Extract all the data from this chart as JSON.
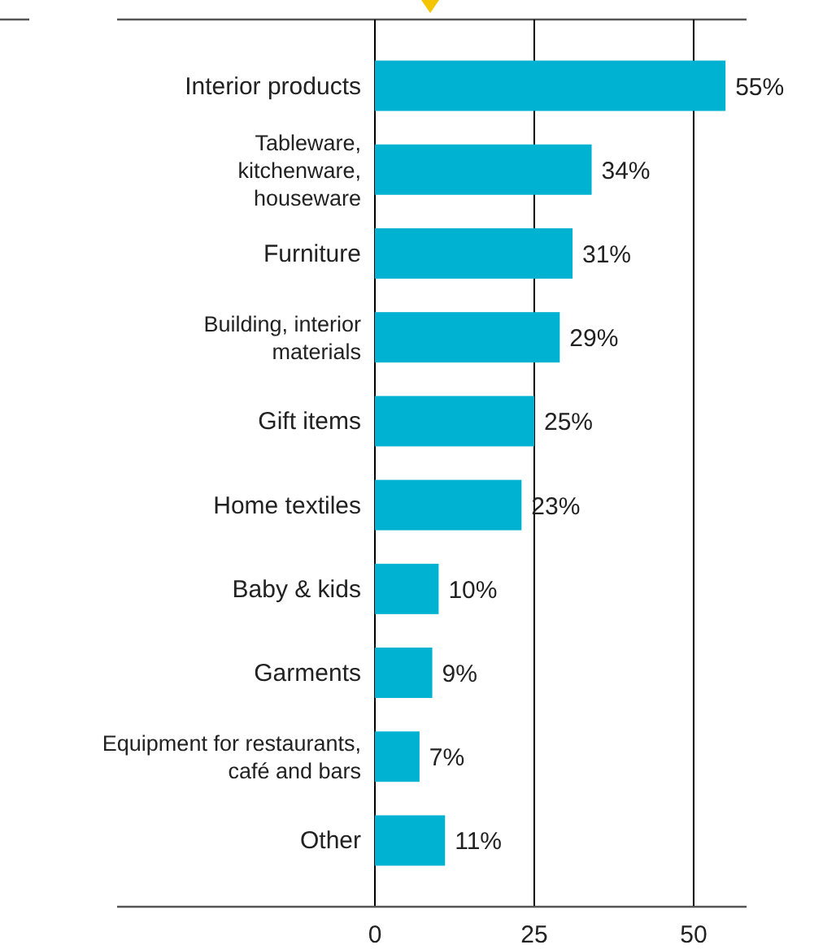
{
  "chart_data": {
    "type": "bar",
    "orientation": "horizontal",
    "categories": [
      "Interior products",
      "Tableware,\nkitchenware,\nhouseware",
      "Furniture",
      "Building, interior\nmaterials",
      "Gift items",
      "Home textiles",
      "Baby & kids",
      "Garments",
      "Equipment for restaurants,\ncafé and bars",
      "Other"
    ],
    "values": [
      55,
      34,
      31,
      29,
      25,
      23,
      10,
      9,
      7,
      11
    ],
    "value_labels": [
      "55%",
      "34%",
      "31%",
      "29%",
      "25%",
      "23%",
      "10%",
      "9%",
      "7%",
      "11%"
    ],
    "color": "#00b2d1",
    "xlim": [
      0,
      58.3
    ],
    "xticks": [
      0,
      25,
      50
    ],
    "grid": "x"
  }
}
